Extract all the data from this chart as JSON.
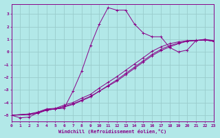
{
  "xlabel": "Windchill (Refroidissement éolien,°C)",
  "background_color": "#b2e8e8",
  "line_color": "#880088",
  "xlim": [
    0,
    23
  ],
  "ylim": [
    -5.5,
    3.8
  ],
  "xticks": [
    0,
    1,
    2,
    3,
    4,
    5,
    6,
    7,
    8,
    9,
    10,
    11,
    12,
    13,
    14,
    15,
    16,
    17,
    18,
    19,
    20,
    21,
    22,
    23
  ],
  "yticks": [
    -5,
    -4,
    -3,
    -2,
    -1,
    0,
    1,
    2,
    3
  ],
  "grid_color": "#99cccc",
  "curves": [
    {
      "x": [
        0,
        1,
        2,
        3,
        4,
        5,
        6,
        7,
        8,
        9,
        10,
        11,
        12,
        13,
        14,
        15,
        16,
        17,
        18,
        19,
        20,
        21,
        22,
        23
      ],
      "y": [
        -5.0,
        -5.2,
        -5.15,
        -4.8,
        -4.6,
        -4.5,
        -4.45,
        -3.1,
        -1.5,
        0.5,
        2.2,
        3.5,
        3.3,
        3.3,
        2.2,
        1.5,
        1.2,
        1.2,
        0.35,
        0.0,
        0.15,
        0.9,
        1.0,
        0.9
      ]
    },
    {
      "x": [
        0,
        2,
        3,
        4,
        5,
        6,
        7,
        8,
        9,
        10,
        11,
        12,
        13,
        14,
        15,
        16,
        17,
        18,
        19,
        20,
        21,
        22,
        23
      ],
      "y": [
        -5.0,
        -4.9,
        -4.8,
        -4.55,
        -4.5,
        -4.3,
        -4.1,
        -3.8,
        -3.5,
        -3.1,
        -2.7,
        -2.3,
        -1.8,
        -1.3,
        -0.8,
        -0.3,
        0.1,
        0.4,
        0.65,
        0.85,
        0.9,
        0.95,
        0.85
      ]
    },
    {
      "x": [
        0,
        2,
        3,
        4,
        5,
        6,
        7,
        8,
        9,
        10,
        11,
        12,
        13,
        14,
        15,
        16,
        17,
        18,
        19,
        20,
        21,
        22,
        23
      ],
      "y": [
        -5.0,
        -4.95,
        -4.85,
        -4.6,
        -4.5,
        -4.35,
        -4.15,
        -3.85,
        -3.55,
        -3.1,
        -2.65,
        -2.2,
        -1.7,
        -1.2,
        -0.7,
        -0.2,
        0.2,
        0.5,
        0.7,
        0.85,
        0.9,
        0.95,
        0.85
      ]
    },
    {
      "x": [
        0,
        2,
        3,
        4,
        5,
        6,
        7,
        8,
        9,
        10,
        11,
        12,
        13,
        14,
        15,
        16,
        17,
        18,
        19,
        20,
        21,
        22,
        23
      ],
      "y": [
        -5.0,
        -4.9,
        -4.75,
        -4.5,
        -4.45,
        -4.2,
        -4.0,
        -3.65,
        -3.35,
        -2.85,
        -2.4,
        -1.95,
        -1.45,
        -0.95,
        -0.45,
        0.05,
        0.4,
        0.65,
        0.8,
        0.9,
        0.92,
        0.95,
        0.85
      ]
    }
  ]
}
